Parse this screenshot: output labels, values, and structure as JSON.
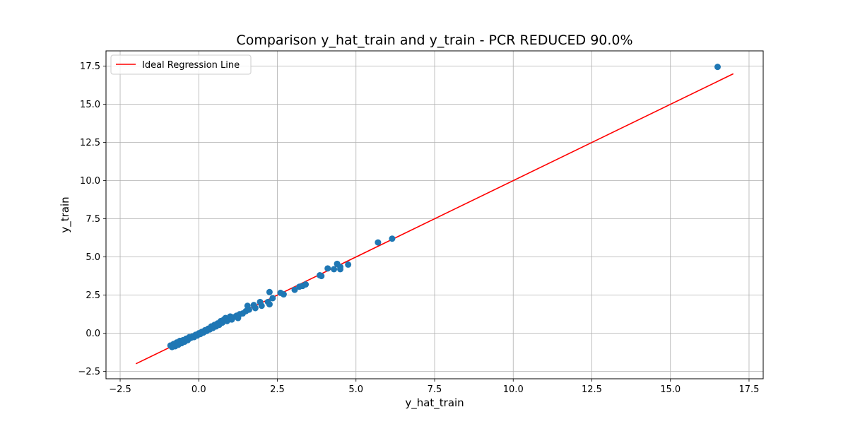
{
  "chart_data": {
    "type": "scatter",
    "title": "Comparison y_hat_train and y_train - PCR REDUCED 90.0%",
    "xlabel": "y_hat_train",
    "ylabel": "y_train",
    "xlim": [
      -2.95,
      17.95
    ],
    "ylim": [
      -2.98,
      18.5
    ],
    "x_ticks": [
      -2.5,
      0.0,
      2.5,
      5.0,
      7.5,
      10.0,
      12.5,
      15.0,
      17.5
    ],
    "x_tick_labels": [
      "−2.5",
      "0.0",
      "2.5",
      "5.0",
      "7.5",
      "10.0",
      "12.5",
      "15.0",
      "17.5"
    ],
    "y_ticks": [
      -2.5,
      0.0,
      2.5,
      5.0,
      7.5,
      10.0,
      12.5,
      15.0,
      17.5
    ],
    "y_tick_labels": [
      "−2.5",
      "0.0",
      "2.5",
      "5.0",
      "7.5",
      "10.0",
      "12.5",
      "15.0",
      "17.5"
    ],
    "grid": true,
    "legend": {
      "position": "top-left",
      "entries": [
        "Ideal Regression Line"
      ]
    },
    "line": {
      "name": "Ideal Regression Line",
      "x": [
        -2,
        17
      ],
      "y": [
        -2,
        17
      ],
      "color": "#ff0000"
    },
    "series": [
      {
        "color": "#1f77b4",
        "points": [
          [
            -0.9,
            -0.8
          ],
          [
            -0.85,
            -0.9
          ],
          [
            -0.8,
            -0.7
          ],
          [
            -0.75,
            -0.85
          ],
          [
            -0.7,
            -0.6
          ],
          [
            -0.65,
            -0.75
          ],
          [
            -0.6,
            -0.5
          ],
          [
            -0.55,
            -0.65
          ],
          [
            -0.5,
            -0.45
          ],
          [
            -0.45,
            -0.55
          ],
          [
            -0.4,
            -0.35
          ],
          [
            -0.35,
            -0.45
          ],
          [
            -0.3,
            -0.25
          ],
          [
            -0.25,
            -0.3
          ],
          [
            -0.2,
            -0.2
          ],
          [
            -0.15,
            -0.25
          ],
          [
            -0.1,
            -0.1
          ],
          [
            -0.05,
            -0.15
          ],
          [
            0.0,
            0.0
          ],
          [
            0.05,
            -0.05
          ],
          [
            0.1,
            0.1
          ],
          [
            0.15,
            0.05
          ],
          [
            0.2,
            0.2
          ],
          [
            0.25,
            0.15
          ],
          [
            0.3,
            0.3
          ],
          [
            0.35,
            0.25
          ],
          [
            0.4,
            0.45
          ],
          [
            0.45,
            0.35
          ],
          [
            0.5,
            0.55
          ],
          [
            0.55,
            0.45
          ],
          [
            0.6,
            0.65
          ],
          [
            0.65,
            0.55
          ],
          [
            0.7,
            0.8
          ],
          [
            0.75,
            0.7
          ],
          [
            0.8,
            0.9
          ],
          [
            0.85,
            1.0
          ],
          [
            0.9,
            0.8
          ],
          [
            1.0,
            1.1
          ],
          [
            1.05,
            0.9
          ],
          [
            1.1,
            1.05
          ],
          [
            1.2,
            1.15
          ],
          [
            1.25,
            1.0
          ],
          [
            1.3,
            1.25
          ],
          [
            1.4,
            1.3
          ],
          [
            1.5,
            1.45
          ],
          [
            1.55,
            1.8
          ],
          [
            1.6,
            1.55
          ],
          [
            1.75,
            1.85
          ],
          [
            1.8,
            1.65
          ],
          [
            1.95,
            2.05
          ],
          [
            2.0,
            1.8
          ],
          [
            2.2,
            2.05
          ],
          [
            2.25,
            1.9
          ],
          [
            2.25,
            2.7
          ],
          [
            2.35,
            2.3
          ],
          [
            2.6,
            2.65
          ],
          [
            2.7,
            2.55
          ],
          [
            3.05,
            2.85
          ],
          [
            3.2,
            3.05
          ],
          [
            3.3,
            3.1
          ],
          [
            3.4,
            3.2
          ],
          [
            3.85,
            3.8
          ],
          [
            3.9,
            3.75
          ],
          [
            4.1,
            4.25
          ],
          [
            4.3,
            4.2
          ],
          [
            4.4,
            4.55
          ],
          [
            4.5,
            4.2
          ],
          [
            4.5,
            4.35
          ],
          [
            4.75,
            4.5
          ],
          [
            5.7,
            5.95
          ],
          [
            6.15,
            6.2
          ],
          [
            16.5,
            17.45
          ]
        ]
      }
    ]
  }
}
